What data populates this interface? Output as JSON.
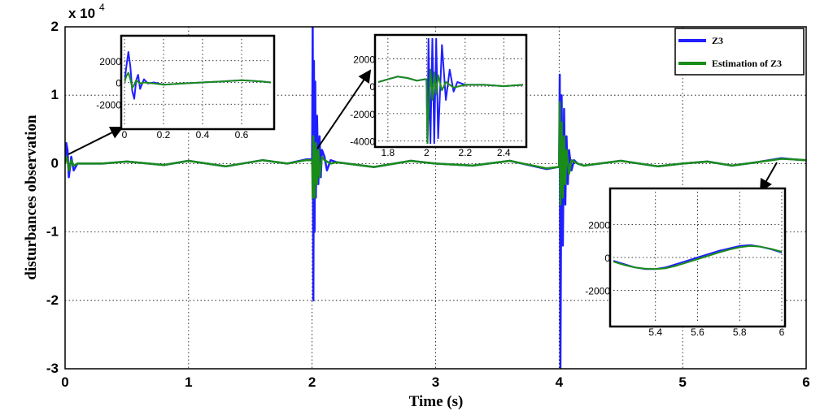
{
  "chart_data": [
    {
      "type": "line",
      "id": "main",
      "title": "",
      "xlabel": "Time (s)",
      "ylabel": "disturbances observation",
      "y_multiplier": "x 10",
      "y_exponent": "4",
      "xlim": [
        0,
        6
      ],
      "ylim": [
        -3,
        2
      ],
      "xticks": [
        0,
        1,
        2,
        3,
        4,
        5,
        6
      ],
      "yticks": [
        -3,
        -2,
        -1,
        0,
        1,
        2
      ],
      "xtick_labels": [
        "0",
        "1",
        "2",
        "3",
        "4",
        "5",
        "6"
      ],
      "ytick_labels": [
        "-3",
        "-2",
        "-1",
        "0",
        "1",
        "2"
      ],
      "grid": true,
      "legend": "top-right",
      "series": [
        {
          "name": "Z3",
          "color": "#1f1fff",
          "x": [
            0,
            0.01,
            0.02,
            0.03,
            0.05,
            0.07,
            0.1,
            0.3,
            0.5,
            0.8,
            1.0,
            1.3,
            1.6,
            1.8,
            1.95,
            2.0,
            2.005,
            2.01,
            2.015,
            2.02,
            2.025,
            2.03,
            2.04,
            2.05,
            2.06,
            2.07,
            2.08,
            2.1,
            2.12,
            2.15,
            2.2,
            2.5,
            2.8,
            3.0,
            3.3,
            3.6,
            3.9,
            3.99,
            4.0,
            4.005,
            4.01,
            4.02,
            4.03,
            4.04,
            4.05,
            4.06,
            4.07,
            4.08,
            4.1,
            4.12,
            4.15,
            4.2,
            4.5,
            4.8,
            5.0,
            5.2,
            5.4,
            5.6,
            5.8,
            5.9,
            6.0
          ],
          "y": [
            0,
            0.3,
            0.2,
            -0.2,
            0.1,
            -0.1,
            0,
            0,
            0.03,
            -0.02,
            0.04,
            -0.04,
            0.05,
            0,
            0.06,
            0.06,
            2.0,
            -2.0,
            1.5,
            -1.0,
            1.2,
            -0.5,
            0.7,
            -0.3,
            0.4,
            -0.2,
            0.2,
            0.1,
            -0.1,
            0.05,
            0.02,
            -0.05,
            0.04,
            0,
            -0.03,
            0.04,
            -0.08,
            -0.05,
            -0.05,
            1.3,
            -3.0,
            1.0,
            -1.2,
            0.8,
            -0.6,
            0.4,
            -0.3,
            0.2,
            -0.1,
            0.05,
            0,
            -0.03,
            0.04,
            -0.04,
            0,
            0.03,
            -0.03,
            0.02,
            0.08,
            0.06,
            0.05
          ]
        },
        {
          "name": "Estimation of Z3",
          "color": "#1a8c1a",
          "x": [
            0,
            0.01,
            0.02,
            0.03,
            0.05,
            0.07,
            0.1,
            0.3,
            0.5,
            0.8,
            1.0,
            1.3,
            1.6,
            1.8,
            1.95,
            2.0,
            2.005,
            2.01,
            2.02,
            2.03,
            2.04,
            2.05,
            2.06,
            2.08,
            2.1,
            2.15,
            2.2,
            2.5,
            2.8,
            3.0,
            3.3,
            3.6,
            3.9,
            3.99,
            4.0,
            4.005,
            4.01,
            4.02,
            4.03,
            4.04,
            4.05,
            4.06,
            4.08,
            4.1,
            4.15,
            4.2,
            4.5,
            4.8,
            5.0,
            5.2,
            5.4,
            5.6,
            5.8,
            5.9,
            6.0
          ],
          "y": [
            0,
            0.1,
            0.05,
            -0.1,
            0.05,
            -0.03,
            0,
            0,
            0.03,
            -0.02,
            0.04,
            -0.04,
            0.05,
            0,
            0.05,
            0.05,
            -0.5,
            0.4,
            -0.5,
            0.3,
            -0.3,
            0.2,
            -0.2,
            0.1,
            0.05,
            0,
            0.02,
            -0.05,
            0.04,
            0,
            -0.03,
            0.04,
            -0.07,
            -0.05,
            -0.05,
            0.9,
            -0.6,
            0.6,
            -0.5,
            0.4,
            -0.3,
            0.2,
            -0.15,
            0.05,
            0,
            -0.03,
            0.04,
            -0.04,
            0,
            0.03,
            -0.03,
            0.02,
            0.07,
            0.06,
            0.05
          ]
        }
      ]
    },
    {
      "type": "line",
      "id": "inset1",
      "xlim": [
        0,
        0.75
      ],
      "ylim": [
        -4000,
        4000
      ],
      "xticks": [
        0,
        0.2,
        0.4,
        0.6
      ],
      "yticks": [
        -2000,
        0,
        2000
      ],
      "xtick_labels": [
        "0",
        "0.2",
        "0.4",
        "0.6"
      ],
      "ytick_labels": [
        "-2000",
        "0",
        "2000"
      ],
      "grid": true,
      "series": [
        {
          "name": "Z3",
          "x": [
            0,
            0.01,
            0.02,
            0.03,
            0.04,
            0.05,
            0.06,
            0.07,
            0.08,
            0.1,
            0.12,
            0.15,
            0.2,
            0.3,
            0.4,
            0.5,
            0.6,
            0.7,
            0.75
          ],
          "y": [
            0,
            1500,
            2800,
            1500,
            -800,
            -1500,
            200,
            700,
            -600,
            300,
            -100,
            0,
            -200,
            -100,
            0,
            100,
            200,
            100,
            0
          ]
        },
        {
          "name": "Estimation of Z3",
          "x": [
            0,
            0.01,
            0.02,
            0.03,
            0.04,
            0.05,
            0.06,
            0.08,
            0.1,
            0.15,
            0.2,
            0.3,
            0.4,
            0.5,
            0.6,
            0.7,
            0.75
          ],
          "y": [
            0,
            600,
            900,
            300,
            -500,
            -200,
            200,
            -100,
            0,
            -100,
            -200,
            -100,
            0,
            100,
            200,
            100,
            0
          ]
        }
      ]
    },
    {
      "type": "line",
      "id": "inset2",
      "xlim": [
        1.75,
        2.5
      ],
      "ylim": [
        -4200,
        3500
      ],
      "xticks": [
        1.8,
        2,
        2.2,
        2.4
      ],
      "yticks": [
        -4000,
        -2000,
        0,
        2000
      ],
      "xtick_labels": [
        "1.8",
        "2",
        "2.2",
        "2.4"
      ],
      "ytick_labels": [
        "-4000",
        "-2000",
        "0",
        "2000"
      ],
      "grid": true,
      "series": [
        {
          "name": "Z3",
          "x": [
            1.75,
            1.8,
            1.85,
            1.9,
            1.95,
            1.99,
            2.0,
            2.005,
            2.01,
            2.02,
            2.03,
            2.04,
            2.05,
            2.06,
            2.08,
            2.1,
            2.12,
            2.14,
            2.16,
            2.2,
            2.3,
            2.4,
            2.5
          ],
          "y": [
            300,
            500,
            700,
            600,
            400,
            500,
            500,
            -4200,
            3500,
            -4200,
            3500,
            -4200,
            3500,
            -3800,
            3000,
            -1000,
            1200,
            -400,
            300,
            100,
            100,
            0,
            100
          ]
        },
        {
          "name": "Estimation of Z3",
          "x": [
            1.75,
            1.8,
            1.85,
            1.9,
            1.95,
            1.99,
            2.0,
            2.005,
            2.01,
            2.02,
            2.03,
            2.04,
            2.05,
            2.06,
            2.08,
            2.1,
            2.14,
            2.2,
            2.3,
            2.4,
            2.5
          ],
          "y": [
            300,
            500,
            700,
            600,
            400,
            500,
            500,
            -4200,
            -2000,
            1200,
            -1000,
            1000,
            -600,
            800,
            -300,
            300,
            -100,
            100,
            100,
            0,
            100
          ]
        }
      ]
    },
    {
      "type": "line",
      "id": "inset3",
      "xlim": [
        5.2,
        6
      ],
      "ylim": [
        -4000,
        4000
      ],
      "xticks": [
        5.4,
        5.6,
        5.8,
        6
      ],
      "yticks": [
        -2000,
        0,
        2000
      ],
      "xtick_labels": [
        "5.4",
        "5.6",
        "5.8",
        "6"
      ],
      "ytick_labels": [
        "-2000",
        "0",
        "2000"
      ],
      "grid": true,
      "series": [
        {
          "name": "Z3",
          "x": [
            5.2,
            5.25,
            5.3,
            5.35,
            5.4,
            5.45,
            5.5,
            5.55,
            5.6,
            5.65,
            5.7,
            5.75,
            5.8,
            5.85,
            5.9,
            5.95,
            6.0
          ],
          "y": [
            -200,
            -400,
            -600,
            -700,
            -700,
            -600,
            -400,
            -200,
            0,
            200,
            400,
            550,
            700,
            750,
            650,
            500,
            300
          ]
        },
        {
          "name": "Estimation of Z3",
          "x": [
            5.2,
            5.25,
            5.3,
            5.35,
            5.4,
            5.45,
            5.5,
            5.55,
            5.6,
            5.65,
            5.7,
            5.75,
            5.8,
            5.85,
            5.9,
            5.95,
            6.0
          ],
          "y": [
            -250,
            -450,
            -600,
            -680,
            -700,
            -650,
            -500,
            -300,
            -100,
            100,
            300,
            480,
            620,
            700,
            650,
            520,
            350
          ]
        }
      ]
    }
  ]
}
